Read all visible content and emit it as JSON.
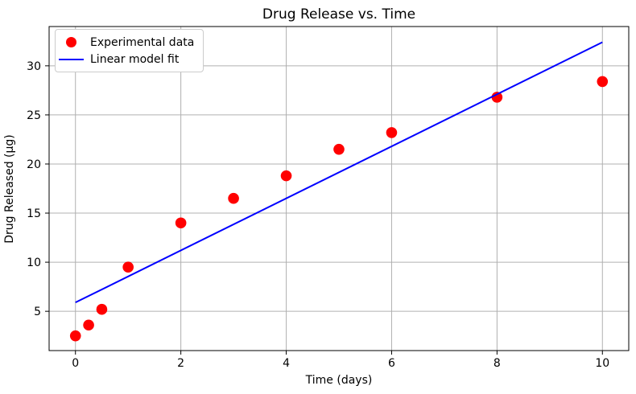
{
  "chart_data": {
    "type": "scatter",
    "title": "Drug Release vs. Time",
    "xlabel": "Time (days)",
    "ylabel": "Drug Released (µg)",
    "xlim": [
      -0.5,
      10.5
    ],
    "ylim": [
      1,
      34
    ],
    "x_ticks": [
      0,
      2,
      4,
      6,
      8,
      10
    ],
    "y_ticks": [
      5,
      10,
      15,
      20,
      25,
      30
    ],
    "grid": true,
    "grid_color": "#b0b0b0",
    "background_color": "#ffffff",
    "spine_color": "#000000",
    "legend_position": "upper left",
    "series": [
      {
        "name": "Experimental data",
        "type": "scatter",
        "marker": "circle",
        "color": "#ff0000",
        "x": [
          0,
          0.25,
          0.5,
          1,
          2,
          3,
          4,
          5,
          6,
          8,
          10
        ],
        "y": [
          2.5,
          3.6,
          5.2,
          9.5,
          14.0,
          16.5,
          18.8,
          21.5,
          23.2,
          26.8,
          28.4
        ]
      },
      {
        "name": "Linear model fit",
        "type": "line",
        "color": "#0000ff",
        "x": [
          0,
          10
        ],
        "y": [
          5.9,
          32.4
        ]
      }
    ]
  }
}
